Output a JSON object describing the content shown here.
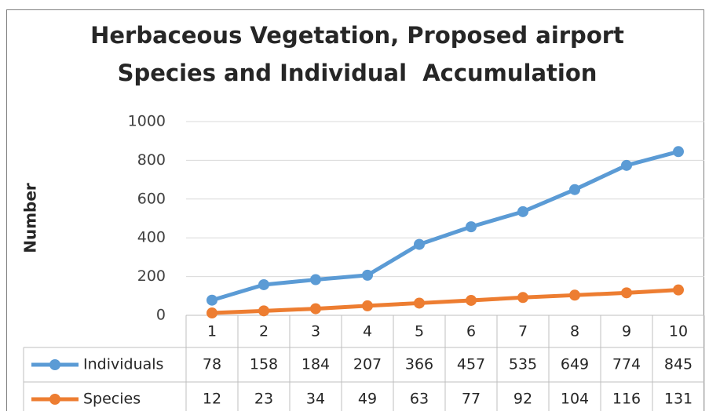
{
  "chart_data": {
    "type": "line",
    "title": [
      "Herbaceous Vegetation, Proposed airport",
      "Species and Individual  Accumulation"
    ],
    "y_label": "Number",
    "categories": [
      "1",
      "2",
      "3",
      "4",
      "5",
      "6",
      "7",
      "8",
      "9",
      "10"
    ],
    "series": [
      {
        "name": "Individuals",
        "color": "#5b9bd5",
        "values": [
          78,
          158,
          184,
          207,
          366,
          457,
          535,
          649,
          774,
          845
        ]
      },
      {
        "name": "Species",
        "color": "#ed7d31",
        "values": [
          12,
          23,
          34,
          49,
          63,
          77,
          92,
          104,
          116,
          131
        ]
      }
    ],
    "ylim": [
      0,
      1000
    ],
    "yticks": [
      0,
      200,
      400,
      600,
      800,
      1000
    ],
    "grid": true
  }
}
